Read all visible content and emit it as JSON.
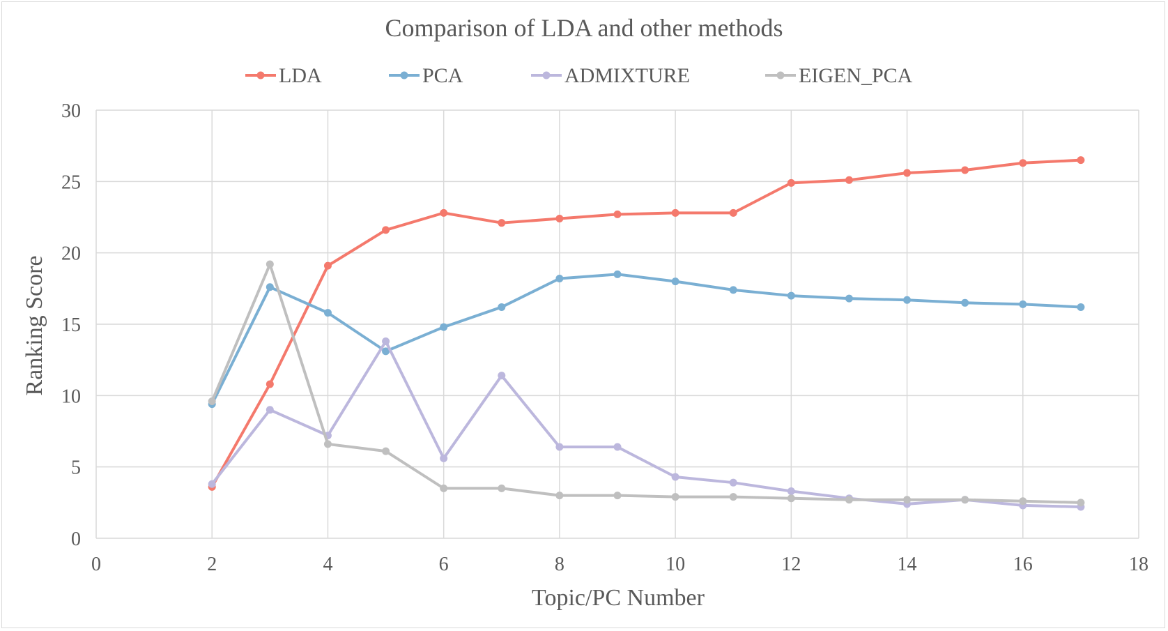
{
  "chart_data": {
    "type": "line",
    "title": "Comparison of LDA and other methods",
    "xlabel": "Topic/PC Number",
    "ylabel": "Ranking Score",
    "xlim": [
      0,
      18
    ],
    "ylim": [
      0,
      30
    ],
    "x_ticks": [
      "0",
      "2",
      "4",
      "6",
      "8",
      "10",
      "12",
      "14",
      "16",
      "18"
    ],
    "y_ticks": [
      "0",
      "5",
      "10",
      "15",
      "20",
      "25",
      "30"
    ],
    "grid": true,
    "legend_position": "top",
    "x": [
      2,
      3,
      4,
      5,
      6,
      7,
      8,
      9,
      10,
      11,
      12,
      13,
      14,
      15,
      16,
      17
    ],
    "series": [
      {
        "name": "LDA",
        "color": "#f4796c",
        "values": [
          3.6,
          10.8,
          19.1,
          21.6,
          22.8,
          22.1,
          22.4,
          22.7,
          22.8,
          22.8,
          24.9,
          25.1,
          25.6,
          25.8,
          26.3,
          26.5
        ]
      },
      {
        "name": "PCA",
        "color": "#7aafd3",
        "values": [
          9.4,
          17.6,
          15.8,
          13.1,
          14.8,
          16.2,
          18.2,
          18.5,
          18.0,
          17.4,
          17.0,
          16.8,
          16.7,
          16.5,
          16.4,
          16.2
        ]
      },
      {
        "name": "ADMIXTURE",
        "color": "#bcb7dd",
        "values": [
          3.8,
          9.0,
          7.2,
          13.8,
          5.6,
          11.4,
          6.4,
          6.4,
          4.3,
          3.9,
          3.3,
          2.8,
          2.4,
          2.7,
          2.3,
          2.2
        ]
      },
      {
        "name": "EIGEN_PCA",
        "color": "#bfbfbf",
        "values": [
          9.6,
          19.2,
          6.6,
          6.1,
          3.5,
          3.5,
          3.0,
          3.0,
          2.9,
          2.9,
          2.8,
          2.7,
          2.7,
          2.7,
          2.6,
          2.5
        ]
      }
    ]
  },
  "colors": {
    "gridline": "#d9d9d9",
    "text": "#595959",
    "border": "#d9d9d9"
  }
}
